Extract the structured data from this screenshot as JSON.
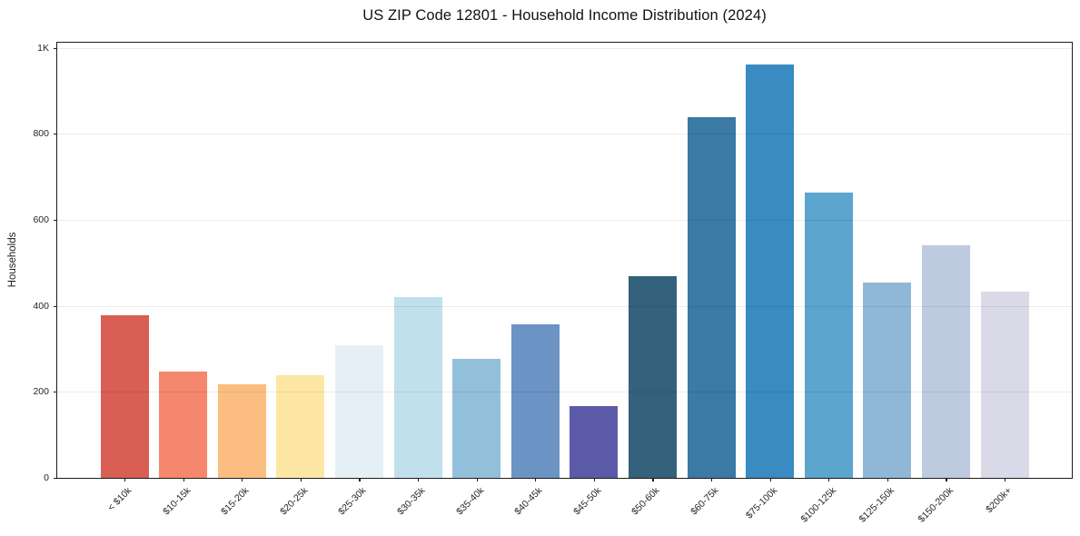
{
  "chart_data": {
    "type": "bar",
    "title": "US ZIP Code 12801 - Household Income Distribution (2024)",
    "xlabel": "",
    "ylabel": "Households",
    "categories": [
      "< $10k",
      "$10-15k",
      "$15-20k",
      "$20-25k",
      "$25-30k",
      "$30-35k",
      "$35-40k",
      "$40-45k",
      "$45-50k",
      "$50-60k",
      "$60-75k",
      "$75-100k",
      "$100-125k",
      "$125-150k",
      "$150-200k",
      "$200k+"
    ],
    "values": [
      378,
      248,
      218,
      239,
      309,
      421,
      277,
      357,
      168,
      470,
      838,
      961,
      663,
      455,
      540,
      434
    ],
    "bar_colors": [
      "#d95f54",
      "#f4876c",
      "#fcbd80",
      "#fde6a4",
      "#e5f0f6",
      "#c0e0ec",
      "#92c0db",
      "#6b93c4",
      "#5c5baa",
      "#34617b",
      "#3a7aa4",
      "#398bc1",
      "#5ba5ce",
      "#91b7d7",
      "#bdcadf",
      "#dad9e8"
    ],
    "yticks": {
      "values": [
        0,
        200,
        400,
        600,
        800,
        1000
      ],
      "labels": [
        "0",
        "200",
        "400",
        "600",
        "800",
        "1K"
      ]
    },
    "ylim": [
      0,
      1012
    ],
    "grid": "horizontal",
    "grid_over_bars": true,
    "legend": "none",
    "background": "#ffffff",
    "spine_color": "#1c1c1c"
  }
}
